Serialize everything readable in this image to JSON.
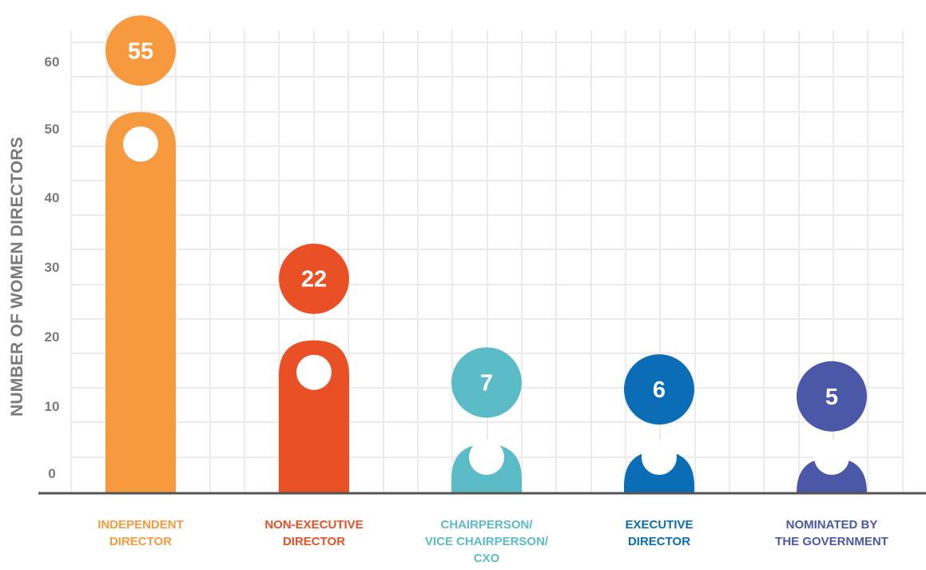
{
  "chart_data": {
    "type": "bar",
    "ylabel": "NUMBER OF WOMEN DIRECTORS",
    "ylim": [
      0,
      60
    ],
    "yticks": [
      "0",
      "10",
      "20",
      "30",
      "40",
      "50",
      "60"
    ],
    "grid": true,
    "categories": [
      {
        "label_lines": [
          "INDEPENDENT",
          "DIRECTOR"
        ],
        "value": 55,
        "value_label": "55",
        "color": "#f7993f"
      },
      {
        "label_lines": [
          "NON-EXECUTIVE",
          "DIRECTOR"
        ],
        "value": 22,
        "value_label": "22",
        "color": "#ea5025"
      },
      {
        "label_lines": [
          "CHAIRPERSON/",
          "VICE CHAIRPERSON/",
          "CXO"
        ],
        "value": 7,
        "value_label": "7",
        "color": "#5bbcc8"
      },
      {
        "label_lines": [
          "EXECUTIVE",
          "DIRECTOR"
        ],
        "value": 6,
        "value_label": "6",
        "color": "#0a6db5"
      },
      {
        "label_lines": [
          "NOMINATED BY",
          "THE GOVERNMENT"
        ],
        "value": 5,
        "value_label": "5",
        "color": "#4b58a8"
      }
    ]
  },
  "colors": {
    "grid": "#ebebeb",
    "axis_line": "#555555",
    "tick_text": "#7a7a7a"
  }
}
